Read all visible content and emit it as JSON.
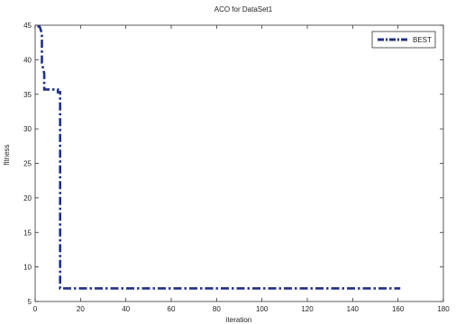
{
  "chart_data": {
    "type": "line",
    "title": "ACO for DataSet1",
    "xlabel": "iteration",
    "ylabel": "fitness",
    "xlim": [
      0,
      180
    ],
    "ylim": [
      5,
      45
    ],
    "xticks": [
      0,
      20,
      40,
      60,
      80,
      100,
      120,
      140,
      160,
      180
    ],
    "yticks": [
      5,
      10,
      15,
      20,
      25,
      30,
      35,
      40,
      45
    ],
    "grid": false,
    "legend_position": "top-right",
    "series": [
      {
        "name": "BEST",
        "color": "#1f2f8a",
        "line_style": "dash-dot",
        "x": [
          1,
          2,
          3,
          3,
          4,
          4,
          10,
          10,
          11,
          11,
          161
        ],
        "y": [
          44.8,
          44.8,
          43.8,
          39.5,
          38,
          35.7,
          35.7,
          35.3,
          35.3,
          6.9,
          6.9
        ]
      }
    ]
  }
}
